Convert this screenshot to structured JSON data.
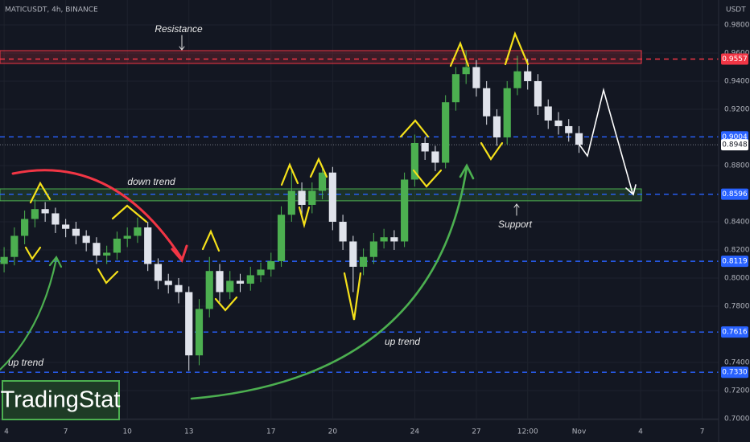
{
  "chart_data": {
    "type": "candlestick",
    "title": "MATICUSDT, 4h, BINANCE",
    "y_axis_label": "USDT",
    "x": [
      4,
      4.5,
      5,
      5.5,
      6,
      6.5,
      7,
      7.5,
      8,
      8.5,
      9,
      9.5,
      10,
      10.5,
      11,
      11.5,
      12,
      12.5,
      13,
      13.5,
      14,
      14.5,
      15,
      15.5,
      16,
      16.5,
      17,
      17.5,
      18,
      18.5,
      19,
      19.5,
      20,
      20.5,
      21,
      21.5,
      22,
      22.5,
      23,
      23.5,
      24,
      24.5,
      25,
      25.5,
      26,
      26.5,
      27,
      27.5,
      28,
      28.5,
      29,
      29.5,
      30,
      30.5,
      31,
      31.5,
      32
    ],
    "open": [
      0.81,
      0.815,
      0.83,
      0.842,
      0.849,
      0.846,
      0.838,
      0.835,
      0.83,
      0.825,
      0.816,
      0.818,
      0.828,
      0.83,
      0.836,
      0.81,
      0.798,
      0.795,
      0.79,
      0.745,
      0.778,
      0.805,
      0.79,
      0.798,
      0.796,
      0.802,
      0.806,
      0.812,
      0.845,
      0.862,
      0.852,
      0.862,
      0.875,
      0.84,
      0.826,
      0.808,
      0.815,
      0.826,
      0.829,
      0.826,
      0.87,
      0.896,
      0.89,
      0.882,
      0.925,
      0.945,
      0.95,
      0.935,
      0.915,
      0.9,
      0.935,
      0.947,
      0.94,
      0.922,
      0.912,
      0.908,
      0.903
    ],
    "high": [
      0.822,
      0.836,
      0.848,
      0.856,
      0.854,
      0.85,
      0.842,
      0.84,
      0.834,
      0.829,
      0.823,
      0.833,
      0.836,
      0.843,
      0.84,
      0.814,
      0.803,
      0.8,
      0.794,
      0.785,
      0.815,
      0.81,
      0.805,
      0.803,
      0.808,
      0.811,
      0.818,
      0.851,
      0.876,
      0.868,
      0.868,
      0.88,
      0.879,
      0.845,
      0.83,
      0.821,
      0.832,
      0.835,
      0.834,
      0.875,
      0.902,
      0.9,
      0.894,
      0.93,
      0.95,
      0.962,
      0.955,
      0.94,
      0.92,
      0.94,
      0.958,
      0.956,
      0.945,
      0.927,
      0.918,
      0.913,
      0.908
    ],
    "low": [
      0.804,
      0.809,
      0.824,
      0.836,
      0.84,
      0.832,
      0.829,
      0.824,
      0.819,
      0.81,
      0.81,
      0.813,
      0.822,
      0.825,
      0.805,
      0.792,
      0.789,
      0.782,
      0.734,
      0.738,
      0.772,
      0.783,
      0.785,
      0.79,
      0.791,
      0.797,
      0.801,
      0.808,
      0.84,
      0.843,
      0.846,
      0.856,
      0.834,
      0.82,
      0.79,
      0.802,
      0.81,
      0.821,
      0.82,
      0.822,
      0.865,
      0.884,
      0.876,
      0.878,
      0.919,
      0.938,
      0.929,
      0.909,
      0.894,
      0.895,
      0.93,
      0.934,
      0.916,
      0.906,
      0.902,
      0.897,
      0.889
    ],
    "close": [
      0.815,
      0.83,
      0.842,
      0.849,
      0.846,
      0.838,
      0.835,
      0.83,
      0.825,
      0.816,
      0.818,
      0.828,
      0.83,
      0.836,
      0.81,
      0.798,
      0.795,
      0.79,
      0.745,
      0.778,
      0.805,
      0.79,
      0.798,
      0.796,
      0.802,
      0.806,
      0.812,
      0.845,
      0.862,
      0.852,
      0.862,
      0.875,
      0.84,
      0.826,
      0.808,
      0.815,
      0.826,
      0.829,
      0.826,
      0.87,
      0.896,
      0.89,
      0.882,
      0.925,
      0.945,
      0.95,
      0.935,
      0.915,
      0.9,
      0.935,
      0.947,
      0.94,
      0.922,
      0.912,
      0.908,
      0.903,
      0.8948
    ],
    "up_color": "#4caf50",
    "down_color": "#e0e3eb",
    "xlim": [
      3.8,
      38.8
    ],
    "xticks": [
      4,
      7,
      10,
      13,
      17,
      20,
      24,
      27,
      {
        "value": 29.5,
        "label": "12:00"
      },
      {
        "value": 32,
        "label": "Nov"
      },
      {
        "value": 35,
        "label": "4"
      },
      {
        "value": 38,
        "label": "7"
      }
    ],
    "ylim": [
      0.6994,
      0.9977
    ],
    "yticks": [
      {
        "value": 0.98,
        "label": "0.9800"
      },
      {
        "value": 0.96,
        "label": "0.9600"
      },
      {
        "value": 0.94,
        "label": "0.9400"
      },
      {
        "value": 0.92,
        "label": "0.9200"
      },
      {
        "value": 0.88,
        "label": "0.8800"
      },
      {
        "value": 0.84,
        "label": "0.8400"
      },
      {
        "value": 0.82,
        "label": "0.8200"
      },
      {
        "value": 0.8,
        "label": "0.8000"
      },
      {
        "value": 0.78,
        "label": "0.7800"
      },
      {
        "value": 0.74,
        "label": "0.7400"
      },
      {
        "value": 0.72,
        "label": "0.7200"
      },
      {
        "value": 0.7,
        "label": "0.7000"
      }
    ],
    "grid": true,
    "levels": [
      {
        "value": 0.9557,
        "color": "#f23645"
      },
      {
        "value": 0.9004,
        "color": "#2962ff"
      },
      {
        "value": 0.8948,
        "color": "#787b86"
      },
      {
        "value": 0.8596,
        "color": "#2962ff"
      },
      {
        "value": 0.8119,
        "color": "#2962ff"
      },
      {
        "value": 0.7616,
        "color": "#2962ff"
      },
      {
        "value": 0.733,
        "label": "0.7330",
        "color": "#2962ff"
      }
    ],
    "zones": [
      {
        "name": "Resistance",
        "range": [
          0.9526,
          0.9617
        ],
        "color": "#f23645"
      },
      {
        "name": "Support",
        "range": [
          0.8549,
          0.8634
        ],
        "color": "#4caf50"
      }
    ],
    "annotations": [
      "down trend",
      "up trend",
      "up trend"
    ],
    "watermark": "TradingStat"
  }
}
